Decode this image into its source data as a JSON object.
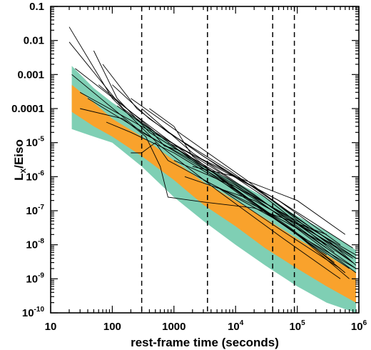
{
  "chart_data": {
    "type": "line",
    "xlabel": "rest-frame time (seconds)",
    "ylabel": "L_X/Eiso",
    "ylabel_parts": {
      "main": "L",
      "sub": "X",
      "rest": "/Eiso"
    },
    "x_scale": "log",
    "y_scale": "log",
    "xlim": [
      10,
      1000000
    ],
    "ylim": [
      1e-10,
      0.1
    ],
    "x_ticks": [
      {
        "value": 10,
        "label": "10"
      },
      {
        "value": 100,
        "label": "100"
      },
      {
        "value": 1000,
        "label": "1000"
      },
      {
        "value": 10000,
        "label": "10",
        "exp": "4"
      },
      {
        "value": 100000,
        "label": "10",
        "exp": "5"
      },
      {
        "value": 1000000,
        "label": "10",
        "exp": "6"
      }
    ],
    "y_ticks": [
      {
        "value": 0.1,
        "label": "0.1"
      },
      {
        "value": 0.01,
        "label": "0.01"
      },
      {
        "value": 0.001,
        "label": "0.001"
      },
      {
        "value": 0.0001,
        "label": "0.0001"
      },
      {
        "value": 1e-05,
        "label": "10",
        "exp": "-5"
      },
      {
        "value": 1e-06,
        "label": "10",
        "exp": "-6"
      },
      {
        "value": 1e-07,
        "label": "10",
        "exp": "-7"
      },
      {
        "value": 1e-08,
        "label": "10",
        "exp": "-8"
      },
      {
        "value": 1e-09,
        "label": "10",
        "exp": "-9"
      },
      {
        "value": 1e-10,
        "label": "10",
        "exp": "-10"
      }
    ],
    "vertical_dashed_lines": [
      300,
      3500,
      40000,
      90000
    ],
    "colors": {
      "outer_band": "#7fcfb4",
      "inner_band": "#f9a22c",
      "lines": "#000000"
    },
    "bands": [
      {
        "name": "outer",
        "upper": [
          [
            22,
            0.0018
          ],
          [
            50,
            0.0004
          ],
          [
            100,
            0.00015
          ],
          [
            300,
            4e-05
          ],
          [
            1000,
            8e-06
          ],
          [
            3000,
            2e-06
          ],
          [
            10000,
            7e-07
          ],
          [
            30000,
            2.5e-07
          ],
          [
            100000,
            7e-08
          ],
          [
            300000,
            2.5e-08
          ],
          [
            900000,
            7e-09
          ]
        ],
        "lower": [
          [
            22,
            2.5e-05
          ],
          [
            50,
            1.5e-05
          ],
          [
            100,
            1e-05
          ],
          [
            300,
            2e-06
          ],
          [
            1000,
            2.5e-07
          ],
          [
            3000,
            5e-08
          ],
          [
            10000,
            1e-08
          ],
          [
            30000,
            2.5e-09
          ],
          [
            100000,
            6e-10
          ],
          [
            300000,
            2e-10
          ],
          [
            900000,
            1e-10
          ]
        ]
      },
      {
        "name": "inner",
        "upper": [
          [
            22,
            0.0005
          ],
          [
            50,
            0.00015
          ],
          [
            100,
            5e-05
          ],
          [
            300,
            1.5e-05
          ],
          [
            1000,
            3e-06
          ],
          [
            3000,
            7e-07
          ],
          [
            10000,
            2e-07
          ],
          [
            30000,
            6e-08
          ],
          [
            100000,
            1.5e-08
          ],
          [
            300000,
            5e-09
          ],
          [
            900000,
            1.5e-09
          ]
        ],
        "lower": [
          [
            22,
            8e-05
          ],
          [
            50,
            3e-05
          ],
          [
            100,
            1.5e-05
          ],
          [
            300,
            4e-06
          ],
          [
            1000,
            8e-07
          ],
          [
            3000,
            1.5e-07
          ],
          [
            10000,
            3.5e-08
          ],
          [
            30000,
            8e-09
          ],
          [
            100000,
            2e-09
          ],
          [
            300000,
            6e-10
          ],
          [
            900000,
            2e-10
          ]
        ]
      }
    ],
    "series": [
      {
        "points": [
          [
            20,
            0.025
          ],
          [
            100,
            0.0002
          ],
          [
            600,
            8e-06
          ],
          [
            5000,
            4e-07
          ],
          [
            60000,
            1.5e-08
          ],
          [
            500000,
            1e-09
          ]
        ]
      },
      {
        "points": [
          [
            20,
            0.009
          ],
          [
            150,
            0.0001
          ],
          [
            2000,
            3e-06
          ],
          [
            20000,
            1.5e-07
          ],
          [
            300000,
            5e-09
          ]
        ]
      },
      {
        "points": [
          [
            22,
            0.001
          ],
          [
            300,
            2e-05
          ],
          [
            4000,
            1.5e-06
          ],
          [
            60000,
            8e-08
          ],
          [
            800000,
            4e-09
          ]
        ]
      },
      {
        "points": [
          [
            25,
            0.0015
          ],
          [
            200,
            8e-05
          ],
          [
            3000,
            2e-06
          ],
          [
            40000,
            1e-07
          ],
          [
            900000,
            2e-09
          ]
        ]
      },
      {
        "points": [
          [
            30,
            0.0003
          ],
          [
            300,
            3e-05
          ],
          [
            3000,
            3e-06
          ],
          [
            50000,
            2e-07
          ],
          [
            800000,
            8e-09
          ]
        ]
      },
      {
        "points": [
          [
            30,
            0.0001
          ],
          [
            150,
            5e-05
          ],
          [
            350,
            1.5e-05
          ],
          [
            600,
            2e-06
          ],
          [
            800,
            2.5e-07
          ],
          [
            3000,
            1.8e-07
          ],
          [
            20000,
            1.2e-07
          ],
          [
            60000,
            6e-08
          ],
          [
            300000,
            2e-08
          ]
        ]
      },
      {
        "points": [
          [
            40,
            0.0002
          ],
          [
            600,
            1e-05
          ],
          [
            6000,
            8e-07
          ],
          [
            80000,
            3e-08
          ],
          [
            600000,
            1.5e-09
          ]
        ]
      },
      {
        "points": [
          [
            50,
            0.005
          ],
          [
            120,
            0.0002
          ],
          [
            400,
            2e-05
          ],
          [
            4000,
            1.5e-06
          ],
          [
            30000,
            1e-07
          ],
          [
            400000,
            3e-09
          ]
        ]
      },
      {
        "points": [
          [
            60,
            0.0005
          ],
          [
            500,
            2e-05
          ],
          [
            5000,
            1.5e-06
          ],
          [
            100000,
            4e-08
          ],
          [
            800000,
            3e-09
          ]
        ]
      },
      {
        "points": [
          [
            70,
            0.002
          ],
          [
            250,
            0.0001
          ],
          [
            800,
            2e-05
          ],
          [
            8000,
            1.5e-06
          ],
          [
            100000,
            6e-08
          ],
          [
            900000,
            4e-09
          ]
        ]
      },
      {
        "points": [
          [
            80,
            4e-05
          ],
          [
            200,
            2e-05
          ],
          [
            1000,
            5e-06
          ],
          [
            10000,
            4e-07
          ],
          [
            100000,
            2e-08
          ],
          [
            700000,
            1e-09
          ]
        ]
      },
      {
        "points": [
          [
            100,
            0.0005
          ],
          [
            400,
            5e-05
          ],
          [
            3000,
            4e-06
          ],
          [
            30000,
            2.5e-07
          ],
          [
            400000,
            6e-09
          ]
        ]
      },
      {
        "points": [
          [
            120,
            0.00012
          ],
          [
            400,
            2.5e-05
          ],
          [
            700,
            8e-06
          ],
          [
            1200,
            6e-06
          ],
          [
            8000,
            8e-07
          ],
          [
            80000,
            4e-08
          ],
          [
            900000,
            1.5e-09
          ]
        ]
      },
      {
        "points": [
          [
            200,
            5e-06
          ],
          [
            300,
            5e-06
          ],
          [
            500,
            1e-05
          ],
          [
            800,
            3e-06
          ],
          [
            5000,
            5e-07
          ],
          [
            50000,
            3e-08
          ],
          [
            500000,
            2e-09
          ]
        ]
      },
      {
        "points": [
          [
            200,
            0.0002
          ],
          [
            1500,
            1.5e-05
          ],
          [
            15000,
            8e-07
          ],
          [
            150000,
            3e-08
          ],
          [
            800000,
            3e-09
          ]
        ]
      },
      {
        "points": [
          [
            300,
            0.0001
          ],
          [
            2000,
            5e-06
          ],
          [
            20000,
            3e-07
          ],
          [
            300000,
            8e-09
          ]
        ]
      },
      {
        "points": [
          [
            400,
            0.0001
          ],
          [
            1000,
            3e-05
          ],
          [
            2000,
            4e-06
          ],
          [
            10000,
            4e-07
          ],
          [
            100000,
            2e-08
          ],
          [
            900000,
            2e-09
          ]
        ]
      },
      {
        "points": [
          [
            600,
            3e-05
          ],
          [
            3000,
            4e-06
          ],
          [
            30000,
            3e-07
          ],
          [
            300000,
            1.5e-08
          ],
          [
            900000,
            2.5e-09
          ]
        ]
      },
      {
        "points": [
          [
            800,
            1e-05
          ],
          [
            5000,
            2e-06
          ],
          [
            50000,
            2e-07
          ],
          [
            500000,
            1e-08
          ]
        ]
      },
      {
        "points": [
          [
            1000,
            3e-06
          ],
          [
            10000,
            5e-07
          ],
          [
            100000,
            5e-08
          ],
          [
            900000,
            5e-09
          ]
        ]
      },
      {
        "points": [
          [
            2000,
            2e-06
          ],
          [
            10000,
            1e-06
          ],
          [
            100000,
            2e-07
          ],
          [
            600000,
            2e-08
          ]
        ]
      },
      {
        "points": [
          [
            1500,
            1e-06
          ],
          [
            20000,
            2e-07
          ],
          [
            200000,
            2e-08
          ],
          [
            900000,
            4e-09
          ]
        ]
      },
      {
        "points": [
          [
            3000,
            8e-07
          ],
          [
            30000,
            1e-07
          ],
          [
            300000,
            1e-08
          ]
        ]
      },
      {
        "points": [
          [
            5000,
            5e-07
          ],
          [
            50000,
            5e-08
          ],
          [
            700000,
            2e-09
          ]
        ]
      }
    ]
  }
}
